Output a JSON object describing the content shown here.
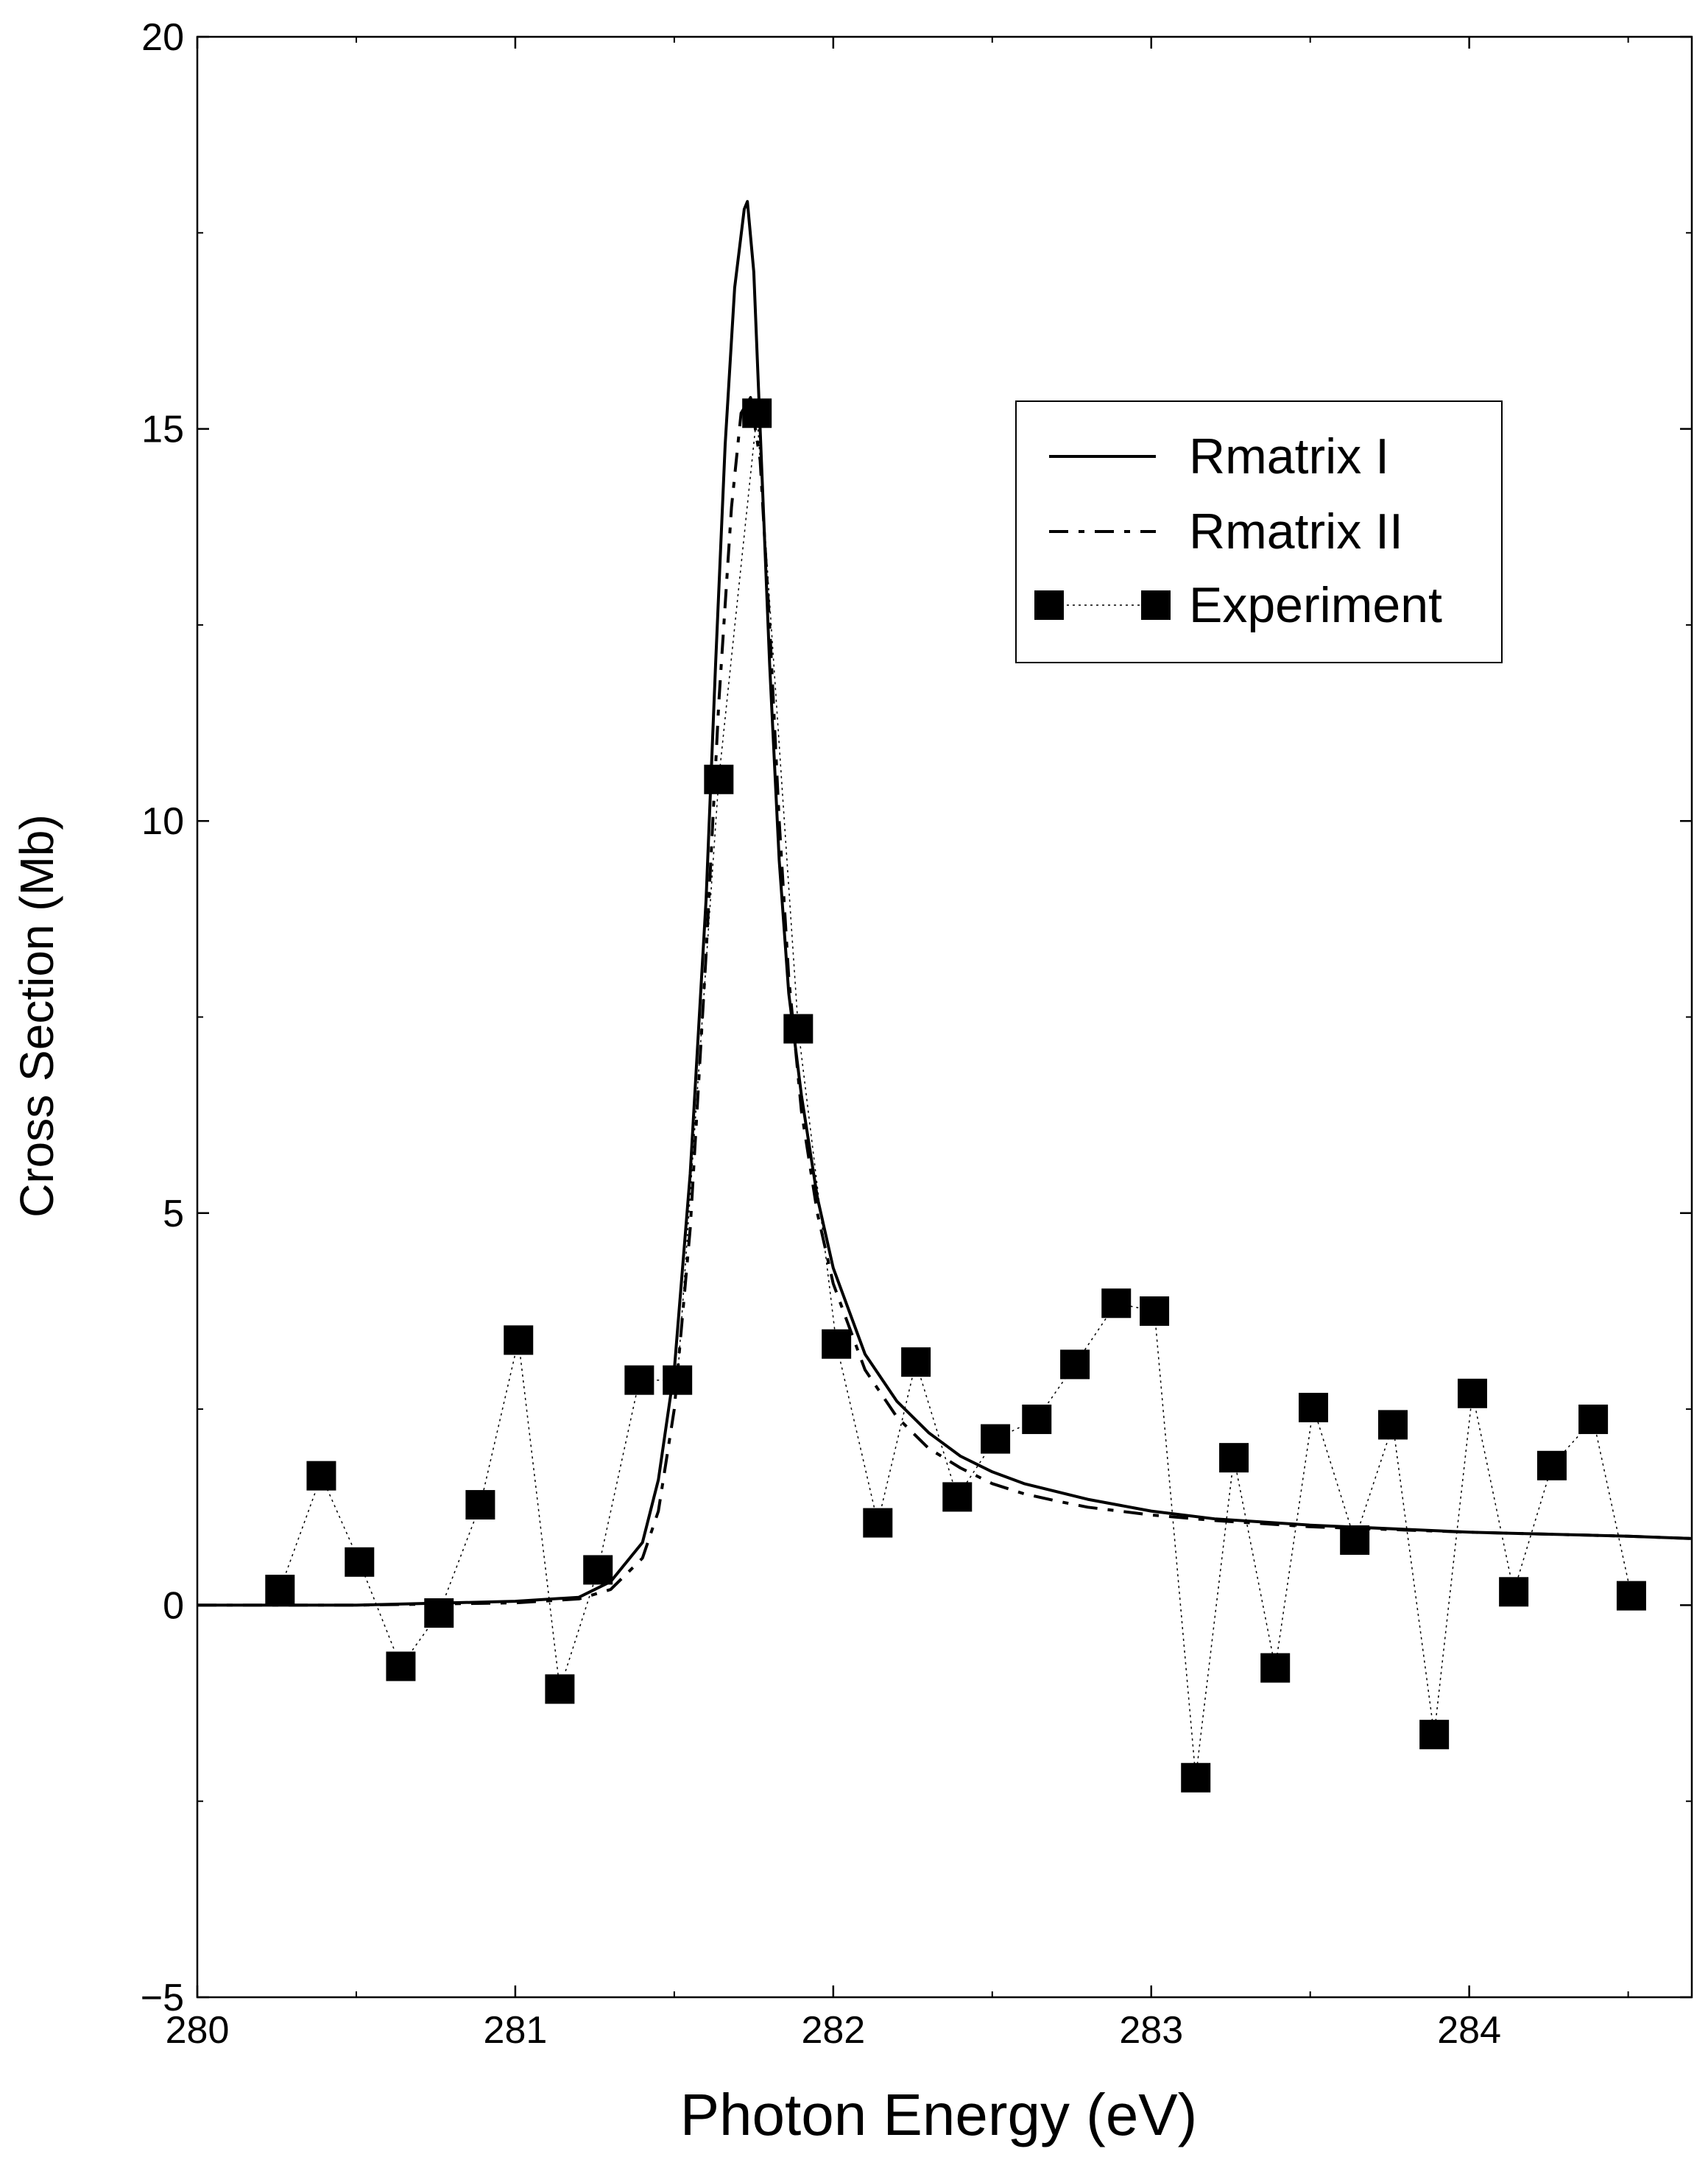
{
  "chart_data": {
    "type": "line",
    "title": "",
    "xlabel": "Photon Energy (eV)",
    "ylabel": "Cross Section (Mb)",
    "xlim": [
      280,
      284.7
    ],
    "ylim": [
      -5,
      20
    ],
    "x_ticks": [
      280,
      281,
      282,
      283,
      284
    ],
    "y_ticks": [
      -5,
      0,
      5,
      10,
      15,
      20
    ],
    "x_tick_labels": [
      "280",
      "281",
      "282",
      "283",
      "284"
    ],
    "y_tick_labels": [
      "−5",
      "0",
      "5",
      "10",
      "15",
      "20"
    ],
    "grid": false,
    "legend_position": "top-right",
    "series": [
      {
        "name": "Rmatrix I",
        "style": "solid",
        "x": [
          280.0,
          280.5,
          281.0,
          281.2,
          281.3,
          281.4,
          281.45,
          281.5,
          281.55,
          281.6,
          281.63,
          281.66,
          281.69,
          281.72,
          281.73,
          281.75,
          281.77,
          281.8,
          281.83,
          281.86,
          281.9,
          281.95,
          282.0,
          282.1,
          282.2,
          282.3,
          282.4,
          282.5,
          282.6,
          282.7,
          282.8,
          283.0,
          283.2,
          283.5,
          284.0,
          284.5,
          284.7
        ],
        "y": [
          0.0,
          0.0,
          0.05,
          0.1,
          0.3,
          0.8,
          1.6,
          3.0,
          5.5,
          9.0,
          12.0,
          14.8,
          16.8,
          17.8,
          17.9,
          17.0,
          15.0,
          12.0,
          9.5,
          7.8,
          6.5,
          5.2,
          4.3,
          3.2,
          2.6,
          2.2,
          1.9,
          1.7,
          1.55,
          1.45,
          1.35,
          1.2,
          1.1,
          1.02,
          0.93,
          0.88,
          0.85
        ]
      },
      {
        "name": "Rmatrix II",
        "style": "dashed",
        "x": [
          280.0,
          280.5,
          281.0,
          281.2,
          281.3,
          281.4,
          281.45,
          281.5,
          281.55,
          281.6,
          281.64,
          281.68,
          281.71,
          281.74,
          281.77,
          281.8,
          281.83,
          281.86,
          281.9,
          281.95,
          282.0,
          282.1,
          282.2,
          282.3,
          282.4,
          282.5,
          282.6,
          282.7,
          282.8,
          283.0,
          283.2,
          283.5,
          284.0,
          284.5,
          284.7
        ],
        "y": [
          0.0,
          0.0,
          0.03,
          0.08,
          0.2,
          0.6,
          1.2,
          2.5,
          4.8,
          8.3,
          11.5,
          14.0,
          15.2,
          15.4,
          14.6,
          12.5,
          10.0,
          8.0,
          6.3,
          5.0,
          4.1,
          3.0,
          2.4,
          2.0,
          1.75,
          1.55,
          1.42,
          1.33,
          1.25,
          1.15,
          1.08,
          1.0,
          0.93,
          0.88,
          0.85
        ]
      },
      {
        "name": "Experiment",
        "style": "dotted-markers",
        "x": [
          280.26,
          280.39,
          280.51,
          280.64,
          280.76,
          280.89,
          281.01,
          281.14,
          281.26,
          281.39,
          281.51,
          281.64,
          281.76,
          281.89,
          282.01,
          282.14,
          282.26,
          282.39,
          282.51,
          282.64,
          282.76,
          282.89,
          283.01,
          283.14,
          283.26,
          283.39,
          283.51,
          283.64,
          283.76,
          283.89,
          284.01,
          284.14,
          284.26,
          284.39,
          284.51
        ],
        "y": [
          0.2,
          1.65,
          0.55,
          -0.78,
          -0.1,
          1.28,
          3.38,
          -1.07,
          0.45,
          2.87,
          2.87,
          10.53,
          15.2,
          7.35,
          3.33,
          1.05,
          3.1,
          1.38,
          2.12,
          2.37,
          3.07,
          3.85,
          3.75,
          -2.2,
          1.88,
          -0.8,
          2.52,
          0.83,
          2.3,
          -1.65,
          2.7,
          0.17,
          1.78,
          2.37,
          0.12
        ]
      }
    ]
  }
}
